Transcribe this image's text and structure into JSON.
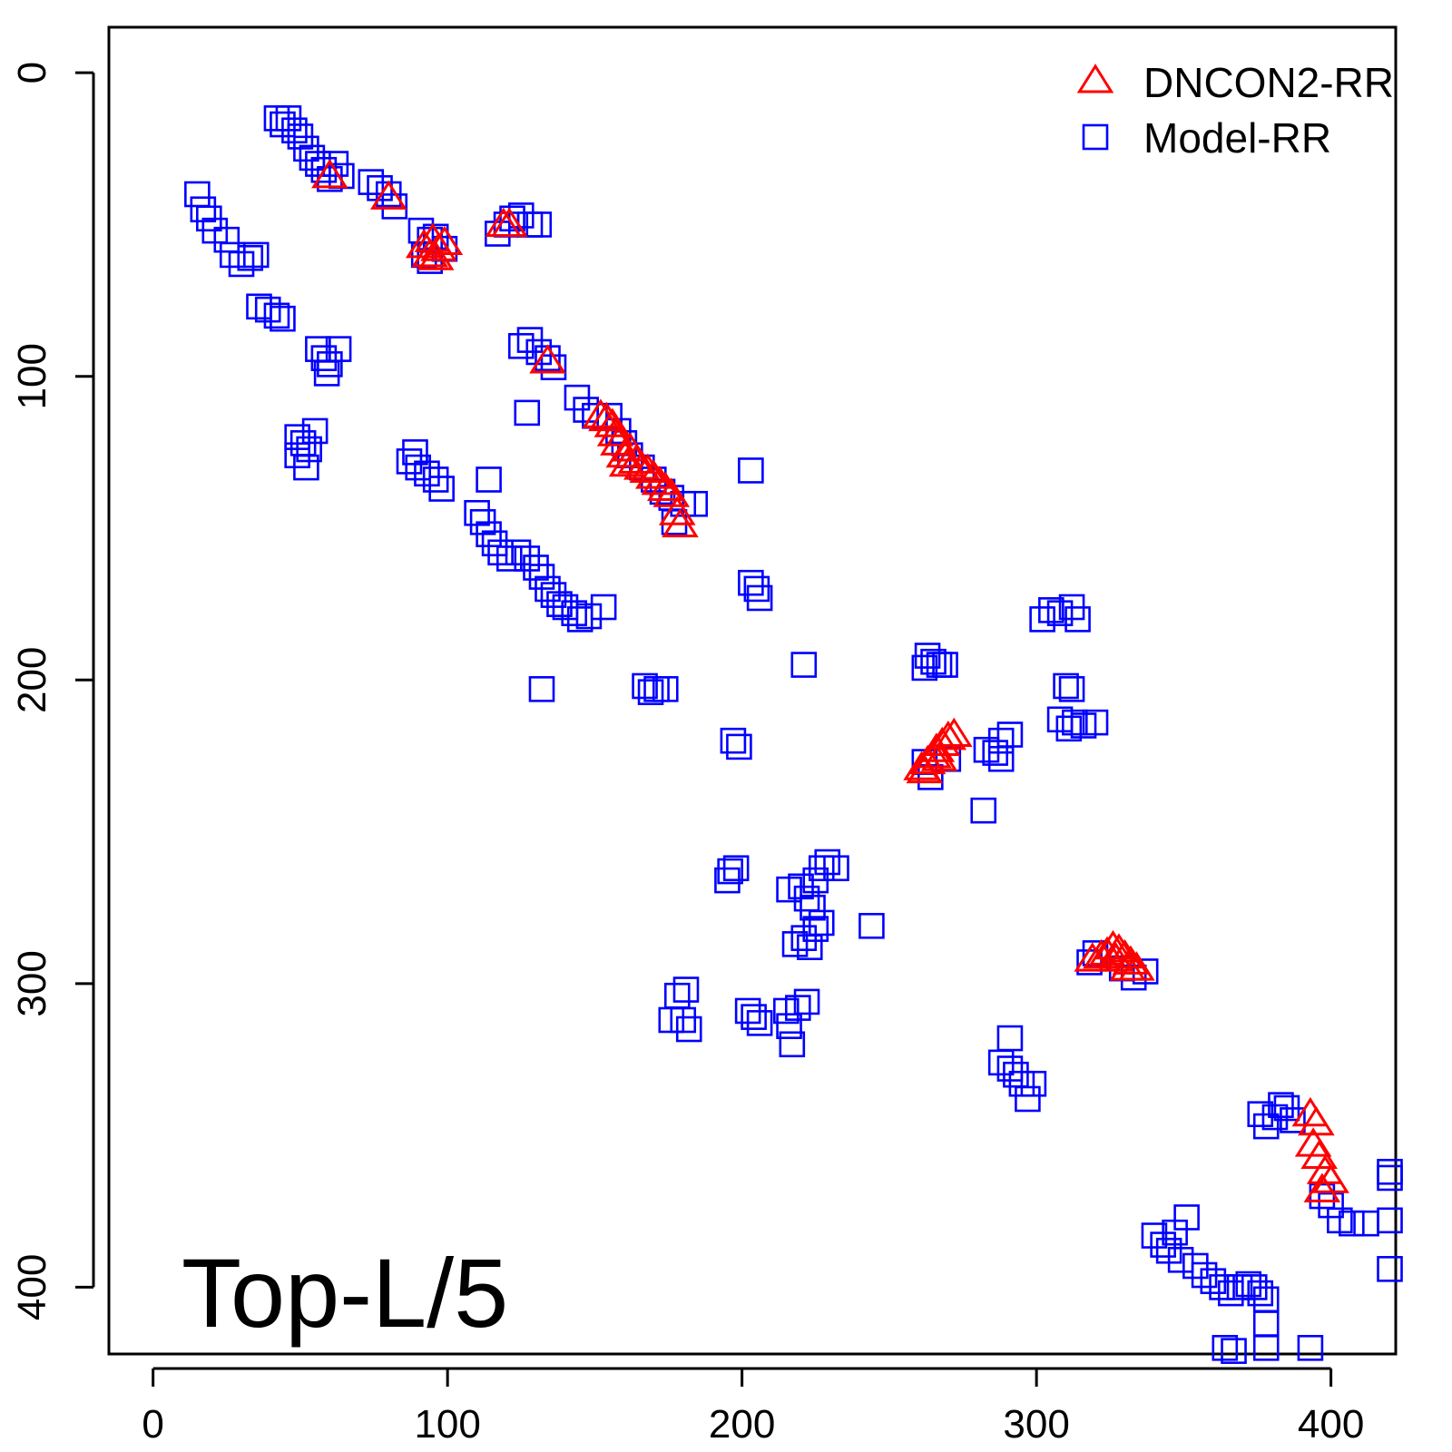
{
  "chart_data": {
    "type": "scatter",
    "title": "",
    "xlabel": "",
    "ylabel": "",
    "annotation": "Top-L/5",
    "xlim": [
      -15,
      422
    ],
    "ylim": [
      422,
      -15
    ],
    "y_axis_reversed": true,
    "grid": false,
    "legend_position": "top-right",
    "x_ticks": [
      0,
      100,
      200,
      300,
      400
    ],
    "y_ticks": [
      0,
      100,
      200,
      300,
      400
    ],
    "x_tick_labels": [
      "0",
      "100",
      "200",
      "300",
      "400"
    ],
    "y_tick_labels": [
      "0",
      "100",
      "200",
      "300",
      "400"
    ],
    "series": [
      {
        "name": "DNCON2-RR",
        "marker": "triangle",
        "color": "#ff0000",
        "points": [
          [
            60,
            34
          ],
          [
            80,
            41
          ],
          [
            92,
            57
          ],
          [
            94,
            60
          ],
          [
            95,
            55
          ],
          [
            97,
            58
          ],
          [
            99,
            56
          ],
          [
            96,
            61
          ],
          [
            119,
            50
          ],
          [
            121,
            50
          ],
          [
            134,
            95
          ],
          [
            152,
            113
          ],
          [
            154,
            114
          ],
          [
            156,
            116
          ],
          [
            157,
            119
          ],
          [
            158,
            122
          ],
          [
            160,
            126
          ],
          [
            161,
            129
          ],
          [
            162,
            124
          ],
          [
            164,
            128
          ],
          [
            166,
            130
          ],
          [
            168,
            131
          ],
          [
            170,
            133
          ],
          [
            172,
            135
          ],
          [
            174,
            137
          ],
          [
            176,
            139
          ],
          [
            178,
            145
          ],
          [
            179,
            149
          ],
          [
            261,
            229
          ],
          [
            263,
            227
          ],
          [
            265,
            225
          ],
          [
            266,
            223
          ],
          [
            268,
            221
          ],
          [
            270,
            219
          ],
          [
            272,
            218
          ],
          [
            267,
            226
          ],
          [
            262,
            230
          ],
          [
            319,
            292
          ],
          [
            322,
            291
          ],
          [
            324,
            290
          ],
          [
            326,
            288
          ],
          [
            328,
            289
          ],
          [
            330,
            291
          ],
          [
            332,
            293
          ],
          [
            334,
            295
          ],
          [
            327,
            292
          ],
          [
            331,
            295
          ],
          [
            393,
            343
          ],
          [
            395,
            346
          ],
          [
            394,
            353
          ],
          [
            396,
            357
          ],
          [
            398,
            362
          ],
          [
            400,
            365
          ],
          [
            397,
            368
          ]
        ]
      },
      {
        "name": "Model-RR",
        "marker": "square",
        "color": "#0000ff",
        "points": [
          [
            42,
            15
          ],
          [
            44,
            17
          ],
          [
            46,
            15
          ],
          [
            48,
            19
          ],
          [
            50,
            21
          ],
          [
            52,
            25
          ],
          [
            54,
            28
          ],
          [
            56,
            30
          ],
          [
            58,
            32
          ],
          [
            62,
            30
          ],
          [
            64,
            34
          ],
          [
            60,
            35
          ],
          [
            15,
            40
          ],
          [
            17,
            45
          ],
          [
            19,
            48
          ],
          [
            21,
            52
          ],
          [
            25,
            55
          ],
          [
            27,
            60
          ],
          [
            30,
            63
          ],
          [
            33,
            61
          ],
          [
            35,
            60
          ],
          [
            36,
            77
          ],
          [
            39,
            78
          ],
          [
            42,
            80
          ],
          [
            44,
            81
          ],
          [
            49,
            120
          ],
          [
            51,
            122
          ],
          [
            53,
            124
          ],
          [
            55,
            118
          ],
          [
            49,
            126
          ],
          [
            52,
            130
          ],
          [
            56,
            91
          ],
          [
            58,
            94
          ],
          [
            60,
            96
          ],
          [
            63,
            91
          ],
          [
            59,
            99
          ],
          [
            74,
            36
          ],
          [
            77,
            38
          ],
          [
            80,
            40
          ],
          [
            82,
            44
          ],
          [
            91,
            52
          ],
          [
            94,
            55
          ],
          [
            96,
            54
          ],
          [
            92,
            60
          ],
          [
            94,
            62
          ],
          [
            99,
            58
          ],
          [
            117,
            53
          ],
          [
            120,
            50
          ],
          [
            122,
            48
          ],
          [
            125,
            47
          ],
          [
            128,
            50
          ],
          [
            131,
            50
          ],
          [
            125,
            90
          ],
          [
            128,
            88
          ],
          [
            131,
            92
          ],
          [
            134,
            94
          ],
          [
            136,
            97
          ],
          [
            127,
            112
          ],
          [
            144,
            107
          ],
          [
            147,
            111
          ],
          [
            150,
            113
          ],
          [
            155,
            113
          ],
          [
            158,
            118
          ],
          [
            160,
            122
          ],
          [
            162,
            126
          ],
          [
            166,
            130
          ],
          [
            170,
            134
          ],
          [
            173,
            138
          ],
          [
            176,
            140
          ],
          [
            180,
            142
          ],
          [
            184,
            142
          ],
          [
            177,
            148
          ],
          [
            87,
            128
          ],
          [
            90,
            130
          ],
          [
            93,
            132
          ],
          [
            96,
            134
          ],
          [
            98,
            137
          ],
          [
            89,
            125
          ],
          [
            114,
            134
          ],
          [
            110,
            145
          ],
          [
            112,
            148
          ],
          [
            114,
            152
          ],
          [
            116,
            155
          ],
          [
            118,
            158
          ],
          [
            121,
            160
          ],
          [
            124,
            158
          ],
          [
            127,
            160
          ],
          [
            130,
            163
          ],
          [
            132,
            166
          ],
          [
            134,
            170
          ],
          [
            136,
            172
          ],
          [
            138,
            175
          ],
          [
            140,
            176
          ],
          [
            143,
            178
          ],
          [
            145,
            180
          ],
          [
            148,
            179
          ],
          [
            153,
            176
          ],
          [
            132,
            203
          ],
          [
            167,
            202
          ],
          [
            169,
            204
          ],
          [
            171,
            203
          ],
          [
            174,
            203
          ],
          [
            203,
            131
          ],
          [
            203,
            168
          ],
          [
            205,
            170
          ],
          [
            206,
            173
          ],
          [
            197,
            220
          ],
          [
            199,
            222
          ],
          [
            202,
            309
          ],
          [
            204,
            311
          ],
          [
            206,
            313
          ],
          [
            196,
            263
          ],
          [
            198,
            262
          ],
          [
            195,
            266
          ],
          [
            215,
            309
          ],
          [
            216,
            314
          ],
          [
            217,
            320
          ],
          [
            219,
            308
          ],
          [
            222,
            306
          ],
          [
            218,
            287
          ],
          [
            221,
            285
          ],
          [
            223,
            288
          ],
          [
            225,
            282
          ],
          [
            227,
            280
          ],
          [
            216,
            269
          ],
          [
            220,
            268
          ],
          [
            222,
            272
          ],
          [
            225,
            266
          ],
          [
            227,
            262
          ],
          [
            229,
            260
          ],
          [
            232,
            262
          ],
          [
            224,
            275
          ],
          [
            178,
            304
          ],
          [
            181,
            302
          ],
          [
            176,
            312
          ],
          [
            180,
            312
          ],
          [
            182,
            315
          ],
          [
            221,
            195
          ],
          [
            244,
            281
          ],
          [
            263,
            192
          ],
          [
            265,
            194
          ],
          [
            262,
            196
          ],
          [
            267,
            195
          ],
          [
            269,
            195
          ],
          [
            262,
            227
          ],
          [
            264,
            232
          ],
          [
            270,
            226
          ],
          [
            283,
            223
          ],
          [
            286,
            224
          ],
          [
            288,
            220
          ],
          [
            291,
            218
          ],
          [
            288,
            226
          ],
          [
            282,
            243
          ],
          [
            302,
            180
          ],
          [
            305,
            177
          ],
          [
            308,
            178
          ],
          [
            312,
            176
          ],
          [
            314,
            180
          ],
          [
            310,
            202
          ],
          [
            312,
            203
          ],
          [
            308,
            213
          ],
          [
            311,
            216
          ],
          [
            313,
            214
          ],
          [
            316,
            215
          ],
          [
            320,
            214
          ],
          [
            288,
            326
          ],
          [
            291,
            328
          ],
          [
            293,
            330
          ],
          [
            295,
            333
          ],
          [
            297,
            338
          ],
          [
            299,
            333
          ],
          [
            291,
            318
          ],
          [
            318,
            293
          ],
          [
            320,
            290
          ],
          [
            329,
            295
          ],
          [
            333,
            298
          ],
          [
            337,
            296
          ],
          [
            376,
            343
          ],
          [
            378,
            347
          ],
          [
            381,
            344
          ],
          [
            383,
            340
          ],
          [
            385,
            341
          ],
          [
            387,
            345
          ],
          [
            340,
            383
          ],
          [
            343,
            386
          ],
          [
            345,
            388
          ],
          [
            347,
            382
          ],
          [
            349,
            391
          ],
          [
            351,
            377
          ],
          [
            354,
            393
          ],
          [
            357,
            396
          ],
          [
            360,
            398
          ],
          [
            363,
            400
          ],
          [
            366,
            402
          ],
          [
            369,
            400
          ],
          [
            372,
            399
          ],
          [
            374,
            400
          ],
          [
            376,
            402
          ],
          [
            378,
            404
          ],
          [
            364,
            420
          ],
          [
            367,
            421
          ],
          [
            378,
            412
          ],
          [
            378,
            420
          ],
          [
            393,
            420
          ],
          [
            397,
            370
          ],
          [
            400,
            373
          ],
          [
            403,
            378
          ],
          [
            407,
            379
          ],
          [
            412,
            379
          ],
          [
            420,
            362
          ],
          [
            420,
            364
          ],
          [
            420,
            378
          ],
          [
            420,
            394
          ]
        ]
      }
    ]
  }
}
